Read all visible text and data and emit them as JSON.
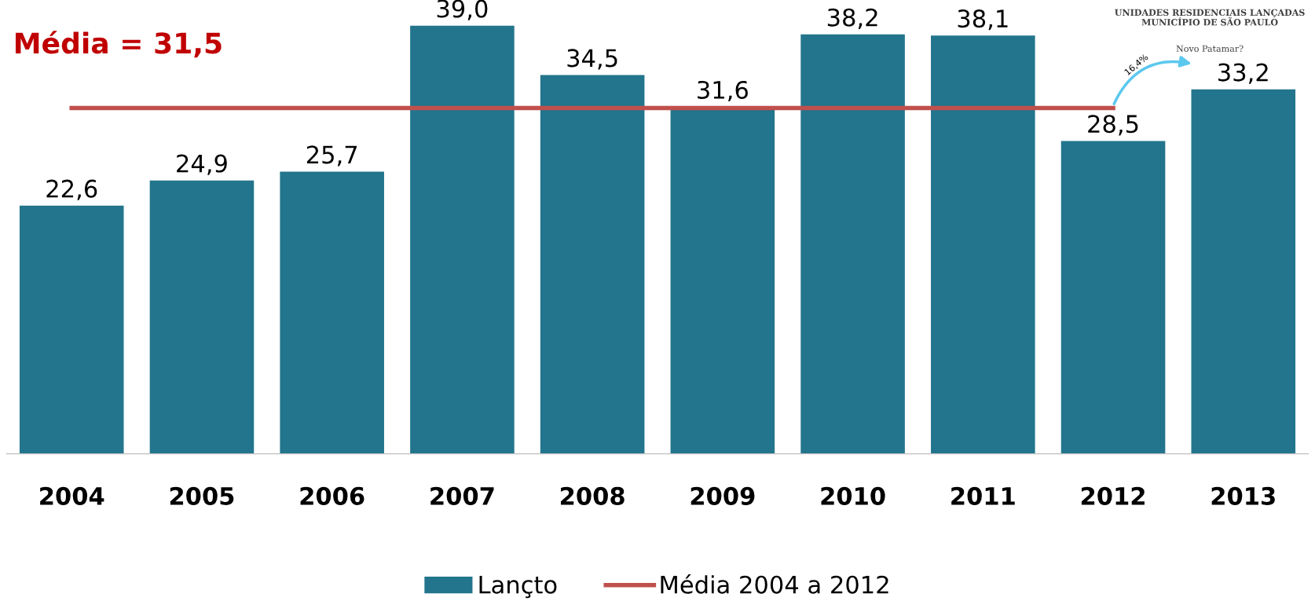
{
  "chart_data": {
    "type": "bar",
    "title": "UNIDADES RESIDENCIAIS LANÇADAS\nMUNICÍPIO DE SÃO PAULO",
    "subtitle": "Novo Patamar?",
    "categories": [
      "2004",
      "2005",
      "2006",
      "2007",
      "2008",
      "2009",
      "2010",
      "2011",
      "2012",
      "2013"
    ],
    "series": [
      {
        "name": "Lançto",
        "color": "#22758c",
        "values": [
          22.6,
          24.9,
          25.7,
          39.0,
          34.5,
          31.6,
          38.2,
          38.1,
          28.5,
          33.2
        ],
        "value_labels": [
          "22,6",
          "24,9",
          "25,7",
          "39,0",
          "34,5",
          "31,6",
          "38,2",
          "38,1",
          "28,5",
          "33,2"
        ]
      },
      {
        "name": "Média 2004 a 2012",
        "type": "line",
        "color": "#c0504d",
        "values": [
          31.5,
          31.5,
          31.5,
          31.5,
          31.5,
          31.5,
          31.5,
          31.5,
          31.5,
          null
        ]
      }
    ],
    "annotations": [
      {
        "text": "Média = 31,5",
        "x": "2004",
        "y": 31.5
      },
      "16,4%"
    ],
    "tick_labels": "x",
    "legend": "bottom"
  }
}
